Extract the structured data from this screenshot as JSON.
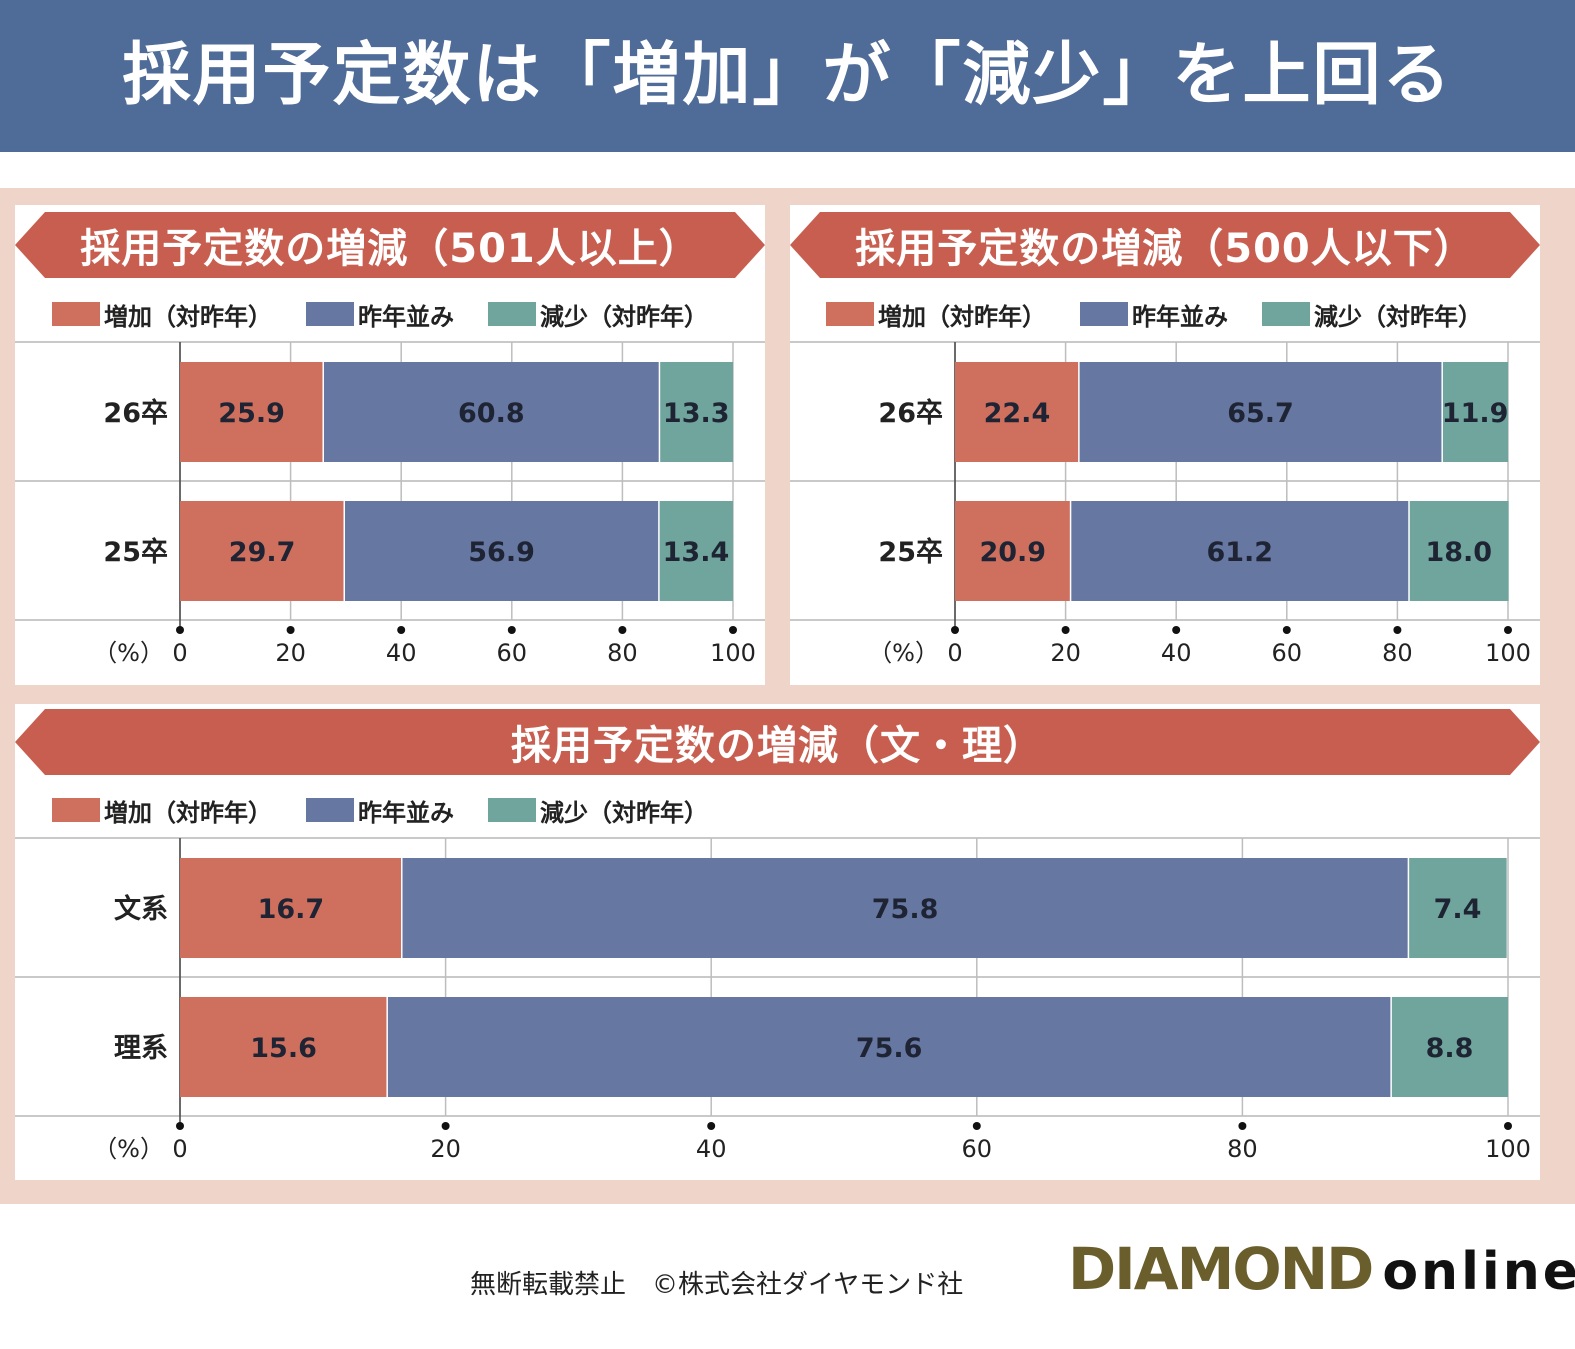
{
  "header": {
    "title": "採用予定数は「増加」が「減少」を上回る"
  },
  "colors": {
    "increase": "#cf705f",
    "same": "#6677a1",
    "decrease": "#6fa59d",
    "ribbon": "#c85e4f",
    "header": "#4f6b97",
    "frame": "#efd4c9"
  },
  "legend": [
    {
      "label": "増加（対昨年）",
      "color": "#cf705f"
    },
    {
      "label": "昨年並み",
      "color": "#6677a1"
    },
    {
      "label": "減少（対昨年）",
      "color": "#6fa59d"
    }
  ],
  "chart_data": [
    {
      "type": "bar",
      "orientation": "horizontal",
      "stacked": true,
      "title": "採用予定数の増減（501人以上）",
      "categories": [
        "26卒",
        "25卒"
      ],
      "series": [
        {
          "name": "増加（対昨年）",
          "values": [
            25.9,
            29.7
          ]
        },
        {
          "name": "昨年並み",
          "values": [
            60.8,
            56.9
          ]
        },
        {
          "name": "減少（対昨年）",
          "values": [
            13.3,
            13.4
          ]
        }
      ],
      "unit_label": "（%）",
      "xlim": [
        0,
        100
      ],
      "ticks": [
        "0",
        "20",
        "40",
        "60",
        "80",
        "100"
      ],
      "grid": true
    },
    {
      "type": "bar",
      "orientation": "horizontal",
      "stacked": true,
      "title": "採用予定数の増減（500人以下）",
      "categories": [
        "26卒",
        "25卒"
      ],
      "series": [
        {
          "name": "増加（対昨年）",
          "values": [
            22.4,
            20.9
          ]
        },
        {
          "name": "昨年並み",
          "values": [
            65.7,
            61.2
          ]
        },
        {
          "name": "減少（対昨年）",
          "values": [
            11.9,
            18.0
          ]
        }
      ],
      "unit_label": "（%）",
      "xlim": [
        0,
        100
      ],
      "ticks": [
        "0",
        "20",
        "40",
        "60",
        "80",
        "100"
      ],
      "grid": true
    },
    {
      "type": "bar",
      "orientation": "horizontal",
      "stacked": true,
      "title": "採用予定数の増減（文・理）",
      "categories": [
        "文系",
        "理系"
      ],
      "series": [
        {
          "name": "増加（対昨年）",
          "values": [
            16.7,
            15.6
          ]
        },
        {
          "name": "昨年並み",
          "values": [
            75.8,
            75.6
          ]
        },
        {
          "name": "減少（対昨年）",
          "values": [
            7.4,
            8.8
          ]
        }
      ],
      "unit_label": "（%）",
      "xlim": [
        0,
        100
      ],
      "ticks": [
        "0",
        "20",
        "40",
        "60",
        "80",
        "100"
      ],
      "grid": true
    }
  ],
  "footer": {
    "copyright": "無断転載禁止　©株式会社ダイヤモンド社",
    "brand_main": "DIAMOND",
    "brand_sub": "online"
  }
}
